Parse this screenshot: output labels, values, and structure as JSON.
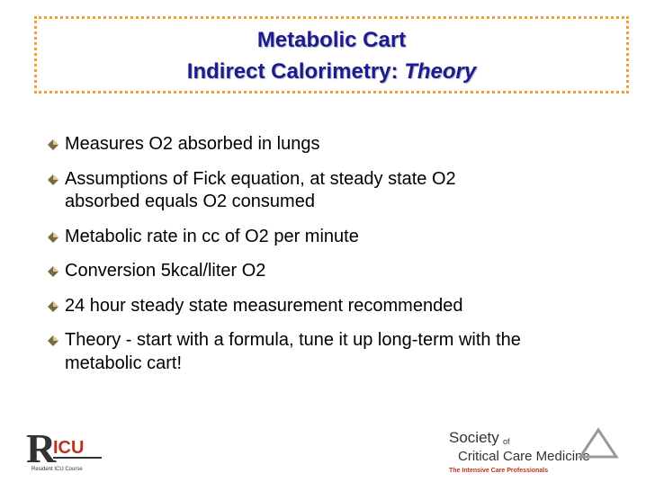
{
  "title": {
    "line1": "Metabolic Cart",
    "line2_plain": "Indirect Calorimetry:",
    "line2_italic": "Theory"
  },
  "bullets": [
    [
      "Measures O2 absorbed in lungs"
    ],
    [
      "Assumptions of Fick equation, at steady state O2",
      "absorbed equals O2 consumed"
    ],
    [
      "Metabolic rate in cc of O2 per minute"
    ],
    [
      "Conversion 5kcal/liter O2"
    ],
    [
      "24 hour steady state measurement recommended"
    ],
    [
      "Theory - start with a formula, tune it up long-term with the",
      "metabolic cart!"
    ]
  ],
  "logo_left": {
    "mark_r": "R",
    "mark_icu": "ICU",
    "caption": "Resident ICU Course"
  },
  "logo_right": {
    "society": "Society",
    "of": "of",
    "name": "Critical Care Medicine",
    "tagline": "The Intensive Care Professionals"
  }
}
